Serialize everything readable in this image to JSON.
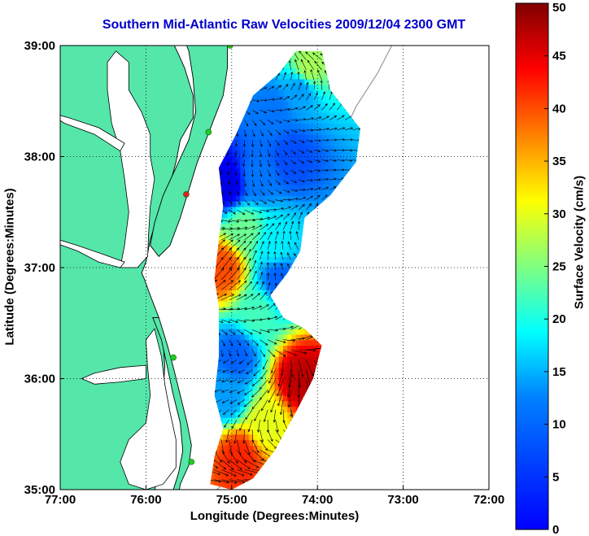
{
  "chart_data": {
    "type": "heatmap",
    "title": "Southern Mid-Atlantic Raw Velocities 2009/12/04 2300 GMT",
    "xlabel": "Longitude (Degrees:Minutes)",
    "ylabel": "Latitude (Degrees:Minutes)",
    "colorbar_label": "Surface Velocity (cm/s)",
    "x_ticks": [
      "77:00",
      "76:00",
      "75:00",
      "74:00",
      "73:00",
      "72:00"
    ],
    "y_ticks": [
      "39:00",
      "38:00",
      "37:00",
      "36:00",
      "35:00"
    ],
    "colorbar_ticks": [
      "50",
      "45",
      "40",
      "35",
      "30",
      "25",
      "20",
      "15",
      "10",
      "5",
      "0"
    ],
    "xlim": [
      -77,
      -72
    ],
    "ylim": [
      35,
      39
    ],
    "clim": [
      0,
      50
    ],
    "colormap": "jet",
    "grid": "dotted",
    "land_color": "#55e6aa",
    "velocity_regions": [
      {
        "lon": -74.1,
        "lat": 38.8,
        "speed": 27
      },
      {
        "lon": -74.2,
        "lat": 38.6,
        "speed": 14
      },
      {
        "lon": -74.5,
        "lat": 38.4,
        "speed": 12
      },
      {
        "lon": -74.3,
        "lat": 38.0,
        "speed": 10
      },
      {
        "lon": -74.7,
        "lat": 37.8,
        "speed": 12
      },
      {
        "lon": -75.05,
        "lat": 37.75,
        "speed": 5
      },
      {
        "lon": -74.85,
        "lat": 37.35,
        "speed": 24
      },
      {
        "lon": -74.5,
        "lat": 37.2,
        "speed": 18
      },
      {
        "lon": -75.1,
        "lat": 37.0,
        "speed": 40
      },
      {
        "lon": -74.45,
        "lat": 36.9,
        "speed": 11
      },
      {
        "lon": -74.7,
        "lat": 36.6,
        "speed": 22
      },
      {
        "lon": -74.95,
        "lat": 36.2,
        "speed": 11
      },
      {
        "lon": -74.2,
        "lat": 36.0,
        "speed": 47
      },
      {
        "lon": -74.6,
        "lat": 35.6,
        "speed": 30
      },
      {
        "lon": -74.9,
        "lat": 35.3,
        "speed": 42
      },
      {
        "lon": -75.05,
        "lat": 35.85,
        "speed": 14
      }
    ],
    "stations": [
      {
        "lon": -75.02,
        "lat": 39.0,
        "color": "#22cc22"
      },
      {
        "lon": -75.27,
        "lat": 38.22,
        "color": "#22cc22"
      },
      {
        "lon": -75.53,
        "lat": 37.66,
        "color": "#dd2222"
      },
      {
        "lon": -75.68,
        "lat": 36.19,
        "color": "#22cc22"
      },
      {
        "lon": -75.47,
        "lat": 35.25,
        "color": "#22cc22"
      }
    ]
  }
}
